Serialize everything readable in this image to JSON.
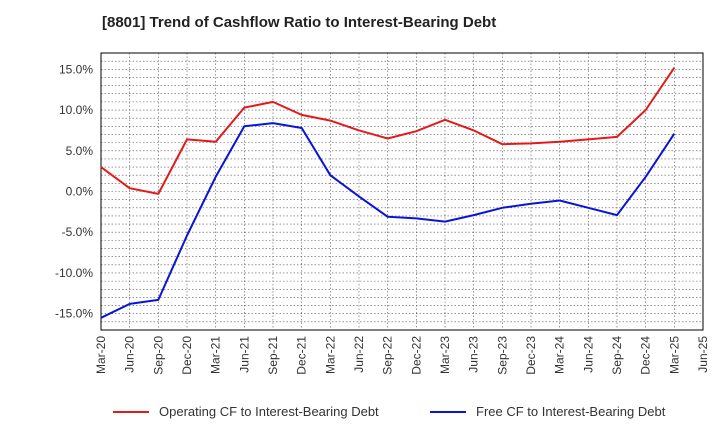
{
  "title": "[8801]  Trend of Cashflow Ratio to Interest-Bearing Debt",
  "chart_data": {
    "type": "line",
    "title": "[8801]  Trend of Cashflow Ratio to Interest-Bearing Debt",
    "xlabel": "",
    "ylabel": "",
    "x": [
      "Mar-20",
      "Jun-20",
      "Sep-20",
      "Dec-20",
      "Mar-21",
      "Jun-21",
      "Sep-21",
      "Dec-21",
      "Mar-22",
      "Jun-22",
      "Sep-22",
      "Dec-22",
      "Mar-23",
      "Jun-23",
      "Sep-23",
      "Dec-23",
      "Mar-24",
      "Jun-24",
      "Sep-24",
      "Dec-24",
      "Mar-25",
      "Jun-25"
    ],
    "ylim": [
      -17,
      17
    ],
    "yticks": [
      -15,
      -10,
      -5,
      0,
      5,
      10,
      15
    ],
    "ytick_labels": [
      "-15.0%",
      "-10.0%",
      "-5.0%",
      "0.0%",
      "5.0%",
      "10.0%",
      "15.0%"
    ],
    "grid": true,
    "legend_position": "bottom",
    "series": [
      {
        "name": "Operating CF to Interest-Bearing Debt",
        "color": "#e31a1c",
        "values": [
          3.0,
          0.4,
          -0.3,
          6.4,
          6.1,
          10.3,
          11.0,
          9.4,
          8.7,
          7.5,
          6.5,
          7.4,
          8.8,
          7.5,
          5.8,
          5.9,
          6.1,
          6.4,
          6.7,
          10.0,
          15.2,
          null
        ]
      },
      {
        "name": "Free CF to Interest-Bearing Debt",
        "color": "#0a14d8",
        "values": [
          -15.5,
          -13.8,
          -13.3,
          -5.4,
          1.8,
          8.0,
          8.4,
          7.8,
          2.0,
          -0.6,
          -3.1,
          -3.3,
          -3.7,
          -2.9,
          -2.0,
          -1.5,
          -1.1,
          -2.0,
          -2.9,
          1.8,
          7.1,
          null
        ]
      }
    ]
  }
}
